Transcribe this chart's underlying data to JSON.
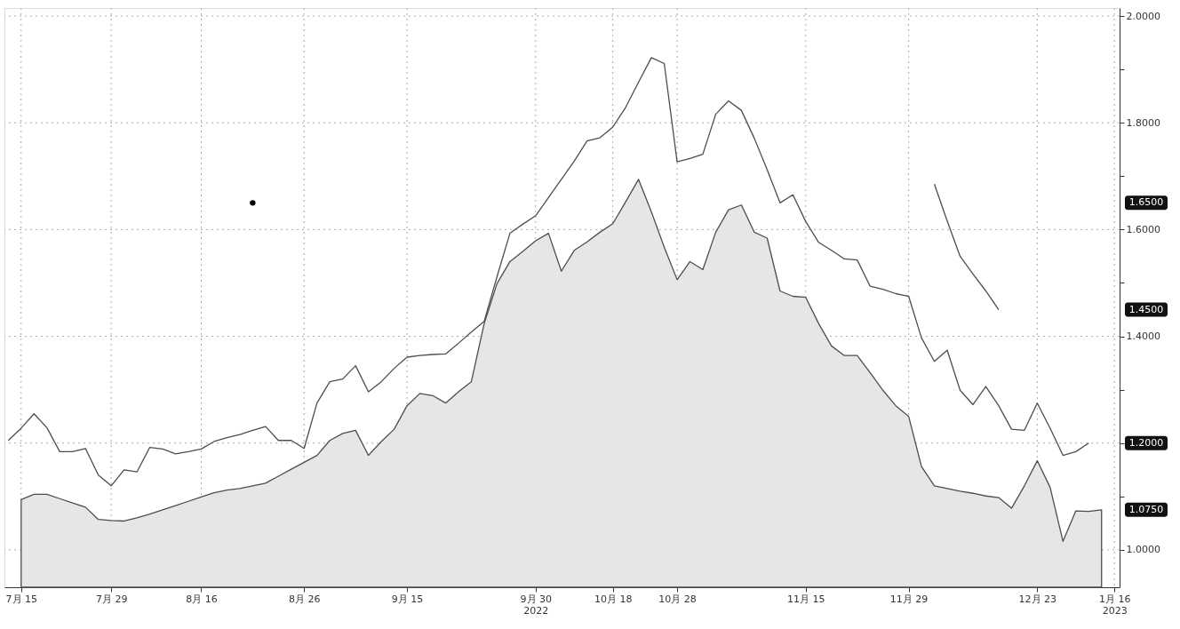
{
  "chart_data": {
    "type": "line",
    "categories": [
      null,
      "7月 15",
      null,
      null,
      null,
      null,
      null,
      null,
      "7月 29",
      null,
      null,
      null,
      null,
      null,
      null,
      "8月 16",
      null,
      null,
      null,
      null,
      null,
      null,
      null,
      "8月 26",
      null,
      null,
      null,
      null,
      null,
      null,
      null,
      "9月 15",
      null,
      null,
      null,
      null,
      null,
      null,
      null,
      null,
      null,
      "9月 30\n2022",
      null,
      null,
      null,
      null,
      null,
      "10月 18",
      null,
      null,
      null,
      null,
      "10月 28",
      null,
      null,
      null,
      null,
      null,
      null,
      null,
      null,
      null,
      "11月 15",
      null,
      null,
      null,
      null,
      null,
      null,
      null,
      "11月 29",
      null,
      null,
      null,
      null,
      null,
      null,
      null,
      null,
      null,
      "12月 23",
      null,
      null,
      null,
      null,
      null,
      "1月 16\n2023"
    ],
    "series": [
      {
        "type": "area",
        "color": "#e6e6e6",
        "values": [
          null,
          1.094,
          1.104,
          1.104,
          1.096,
          1.088,
          1.08,
          1.057,
          1.055,
          1.054,
          1.06,
          1.067,
          1.075,
          1.083,
          1.091,
          1.099,
          1.107,
          1.112,
          1.115,
          1.12,
          1.125,
          1.138,
          1.151,
          1.164,
          1.177,
          1.205,
          1.218,
          1.224,
          1.177,
          1.203,
          1.226,
          1.27,
          1.293,
          1.289,
          1.275,
          1.296,
          1.315,
          1.424,
          1.499,
          1.54,
          1.559,
          1.579,
          1.593,
          1.522,
          1.561,
          1.577,
          1.595,
          1.611,
          1.652,
          1.694,
          1.633,
          1.567,
          1.506,
          1.54,
          1.525,
          1.595,
          1.637,
          1.646,
          1.595,
          1.584,
          1.485,
          1.475,
          1.473,
          1.424,
          1.382,
          1.364,
          1.364,
          1.332,
          1.299,
          1.27,
          1.25,
          1.156,
          1.12,
          1.115,
          1.11,
          1.106,
          1.101,
          1.098,
          1.078,
          1.12,
          1.167,
          1.117,
          1.016,
          1.073,
          1.072,
          1.075,
          null
        ]
      },
      {
        "color": "#4d4d4d",
        "values": [
          1.205,
          1.228,
          1.255,
          1.229,
          1.184,
          1.184,
          1.19,
          1.14,
          1.12,
          1.15,
          1.146,
          1.192,
          1.189,
          1.18,
          1.184,
          1.189,
          1.203,
          1.21,
          1.216,
          1.224,
          1.231,
          1.205,
          1.205,
          1.19,
          1.275,
          1.315,
          1.32,
          1.345,
          1.296,
          1.315,
          1.34,
          1.361,
          1.364,
          1.366,
          1.367,
          1.387,
          1.408,
          1.428,
          1.512,
          1.593,
          1.61,
          1.626,
          1.66,
          1.694,
          1.728,
          1.766,
          1.772,
          1.792,
          1.829,
          1.876,
          1.922,
          1.911,
          1.727,
          1.733,
          1.741,
          1.816,
          1.841,
          1.823,
          1.771,
          1.712,
          1.65,
          1.665,
          1.615,
          1.576,
          1.561,
          1.545,
          1.543,
          1.494,
          1.488,
          1.48,
          1.475,
          1.397,
          1.353,
          1.374,
          1.299,
          1.272,
          1.306,
          1.27,
          1.226,
          1.224,
          1.275,
          1.228,
          1.177,
          1.184,
          1.2,
          null,
          null
        ]
      },
      {
        "color": "#4d4d4d",
        "values": [
          null,
          null,
          null,
          null,
          null,
          null,
          null,
          null,
          null,
          null,
          null,
          null,
          null,
          null,
          null,
          null,
          null,
          null,
          null,
          null,
          null,
          null,
          null,
          null,
          null,
          null,
          null,
          null,
          null,
          null,
          null,
          null,
          null,
          null,
          null,
          null,
          null,
          null,
          null,
          null,
          null,
          null,
          null,
          null,
          null,
          null,
          null,
          null,
          null,
          null,
          null,
          null,
          null,
          null,
          null,
          null,
          null,
          null,
          null,
          null,
          null,
          null,
          null,
          null,
          null,
          null,
          null,
          null,
          null,
          null,
          null,
          null,
          1.685,
          1.616,
          1.55,
          1.517,
          1.485,
          1.45,
          null,
          null,
          null,
          null,
          null,
          null,
          null,
          null,
          null
        ]
      },
      {
        "type": "scatter",
        "color": "#000000",
        "marker": "circle",
        "values": [
          null,
          null,
          null,
          null,
          null,
          null,
          null,
          null,
          null,
          null,
          null,
          null,
          null,
          null,
          null,
          null,
          null,
          null,
          null,
          1.65,
          null,
          null,
          null,
          null,
          null,
          null,
          null,
          null,
          null,
          null,
          null,
          null,
          null,
          null,
          null,
          null,
          null,
          null,
          null,
          null,
          null,
          null,
          null,
          null,
          null,
          null,
          null,
          null,
          null,
          null,
          null,
          null,
          null,
          null,
          null,
          null,
          null,
          null,
          null,
          null,
          null,
          null,
          null,
          null,
          null,
          null,
          null,
          null,
          null,
          null,
          null,
          null,
          null,
          null,
          null,
          null,
          null,
          null,
          null,
          null,
          null,
          null,
          null,
          null,
          null,
          null,
          null
        ]
      }
    ],
    "ylim": [
      0.93,
      2.015
    ],
    "yticks": [
      {
        "value": 1.0,
        "label": "1.0000"
      },
      {
        "value": 1.1,
        "label": null
      },
      {
        "value": 1.2,
        "label": null
      },
      {
        "value": 1.3,
        "label": null
      },
      {
        "value": 1.4,
        "label": "1.4000"
      },
      {
        "value": 1.5,
        "label": null
      },
      {
        "value": 1.6,
        "label": "1.6000"
      },
      {
        "value": 1.7,
        "label": null
      },
      {
        "value": 1.8,
        "label": "1.8000"
      },
      {
        "value": 1.9,
        "label": null
      },
      {
        "value": 2.0,
        "label": "2.0000"
      }
    ],
    "annotations": [
      "1.0750",
      "1.2000",
      "1.4500",
      "1.6500"
    ],
    "grid": true
  }
}
